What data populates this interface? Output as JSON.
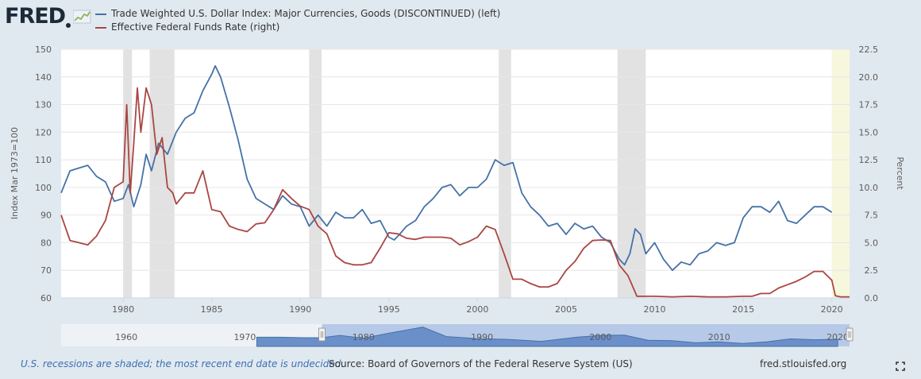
{
  "brand": {
    "logo_text": "FRED"
  },
  "icons": {
    "logo_graph": "line-graph-icon",
    "fullscreen": "expand-icon"
  },
  "colors": {
    "series1": "#4572a7",
    "series2": "#aa4643",
    "recession": "#e2e2e2",
    "undecided": "#f7f7dd",
    "navigator_fill": "#6b8fc9",
    "navigator_window": "#b7c9e8"
  },
  "footer": {
    "note": "U.S. recessions are shaded; the most recent end date is undecided.",
    "source": "Source: Board of Governors of the Federal Reserve System (US)",
    "site": "fred.stlouisfed.org"
  },
  "chart_data": {
    "type": "line",
    "title": "",
    "xlabel": "",
    "x_ticks": [
      1980,
      1985,
      1990,
      1995,
      2000,
      2005,
      2010,
      2015,
      2020
    ],
    "xlim": [
      1976.5,
      2021.0
    ],
    "y_left": {
      "label": "Index Mar 1973=100",
      "lim": [
        60,
        150
      ],
      "ticks": [
        60,
        70,
        80,
        90,
        100,
        110,
        120,
        130,
        140,
        150
      ]
    },
    "y_right": {
      "label": "Percent",
      "lim": [
        0,
        22.5
      ],
      "ticks": [
        "0.0",
        "2.5",
        "5.0",
        "7.5",
        "10.0",
        "12.5",
        "15.0",
        "17.5",
        "20.0",
        "22.5"
      ]
    },
    "grid": "horizontal",
    "legend_position": "top-left",
    "recessions": [
      [
        1980.0,
        1980.5
      ],
      [
        1981.5,
        1982.9
      ],
      [
        1990.5,
        1991.2
      ],
      [
        2001.2,
        2001.9
      ],
      [
        2007.9,
        2009.5
      ]
    ],
    "undecided_region": [
      2020.0,
      2021.0
    ],
    "series": [
      {
        "name": "Trade Weighted U.S. Dollar Index: Major Currencies, Goods (DISCONTINUED) (left)",
        "axis": "left",
        "x": [
          1976.5,
          1977.0,
          1977.5,
          1978.0,
          1978.5,
          1979.0,
          1979.5,
          1980.0,
          1980.3,
          1980.6,
          1981.0,
          1981.3,
          1981.6,
          1982.0,
          1982.5,
          1983.0,
          1983.5,
          1984.0,
          1984.5,
          1985.0,
          1985.2,
          1985.5,
          1986.0,
          1986.5,
          1987.0,
          1987.5,
          1988.0,
          1988.5,
          1989.0,
          1989.5,
          1990.0,
          1990.5,
          1991.0,
          1991.5,
          1992.0,
          1992.5,
          1993.0,
          1993.5,
          1994.0,
          1994.5,
          1995.0,
          1995.3,
          1995.6,
          1996.0,
          1996.5,
          1997.0,
          1997.5,
          1998.0,
          1998.5,
          1999.0,
          1999.5,
          2000.0,
          2000.5,
          2001.0,
          2001.5,
          2002.0,
          2002.5,
          2003.0,
          2003.5,
          2004.0,
          2004.5,
          2005.0,
          2005.5,
          2006.0,
          2006.5,
          2007.0,
          2007.5,
          2008.0,
          2008.3,
          2008.6,
          2008.9,
          2009.2,
          2009.5,
          2010.0,
          2010.5,
          2011.0,
          2011.5,
          2012.0,
          2012.5,
          2013.0,
          2013.5,
          2014.0,
          2014.5,
          2015.0,
          2015.5,
          2016.0,
          2016.5,
          2017.0,
          2017.5,
          2018.0,
          2018.5,
          2019.0,
          2019.5,
          2020.0
        ],
        "y": [
          98,
          106,
          107,
          108,
          104,
          102,
          95,
          96,
          101,
          93,
          101,
          112,
          106,
          116,
          112,
          120,
          125,
          127,
          135,
          141,
          144,
          140,
          129,
          117,
          103,
          96,
          94,
          92,
          97,
          94,
          93,
          86,
          90,
          86,
          91,
          89,
          89,
          92,
          87,
          88,
          82,
          81,
          83,
          86,
          88,
          93,
          96,
          100,
          101,
          97,
          100,
          100,
          103,
          110,
          108,
          109,
          98,
          93,
          90,
          86,
          87,
          83,
          87,
          85,
          86,
          82,
          80,
          74,
          72,
          76,
          85,
          83,
          76,
          80,
          74,
          70,
          73,
          72,
          76,
          77,
          80,
          79,
          80,
          89,
          93,
          93,
          91,
          95,
          88,
          87,
          90,
          93,
          93,
          91
        ]
      },
      {
        "name": "Effective Federal Funds Rate (right)",
        "axis": "right",
        "x": [
          1976.5,
          1977.0,
          1977.5,
          1978.0,
          1978.5,
          1979.0,
          1979.5,
          1980.0,
          1980.2,
          1980.4,
          1980.6,
          1980.8,
          1981.0,
          1981.3,
          1981.6,
          1981.9,
          1982.2,
          1982.5,
          1982.8,
          1983.0,
          1983.5,
          1984.0,
          1984.5,
          1985.0,
          1985.5,
          1986.0,
          1986.5,
          1987.0,
          1987.5,
          1988.0,
          1988.5,
          1989.0,
          1989.5,
          1990.0,
          1990.5,
          1991.0,
          1991.5,
          1992.0,
          1992.5,
          1993.0,
          1993.5,
          1994.0,
          1994.5,
          1995.0,
          1995.5,
          1996.0,
          1996.5,
          1997.0,
          1997.5,
          1998.0,
          1998.5,
          1999.0,
          1999.5,
          2000.0,
          2000.5,
          2001.0,
          2001.5,
          2002.0,
          2002.5,
          2003.0,
          2003.5,
          2004.0,
          2004.5,
          2005.0,
          2005.5,
          2006.0,
          2006.5,
          2007.0,
          2007.5,
          2008.0,
          2008.5,
          2009.0,
          2010.0,
          2011.0,
          2012.0,
          2013.0,
          2014.0,
          2015.0,
          2015.5,
          2016.0,
          2016.5,
          2017.0,
          2017.5,
          2018.0,
          2018.5,
          2019.0,
          2019.5,
          2020.0,
          2020.2,
          2020.5,
          2021.0
        ],
        "y": [
          7.5,
          5.2,
          5.0,
          4.8,
          5.6,
          7.0,
          10.0,
          10.5,
          17.5,
          9.5,
          14.0,
          19.0,
          15.0,
          19.0,
          17.5,
          13.0,
          14.5,
          10.0,
          9.5,
          8.5,
          9.5,
          9.5,
          11.5,
          8.0,
          7.8,
          6.5,
          6.2,
          6.0,
          6.7,
          6.8,
          8.0,
          9.8,
          9.0,
          8.3,
          8.0,
          6.5,
          5.8,
          3.8,
          3.2,
          3.0,
          3.0,
          3.2,
          4.5,
          5.9,
          5.8,
          5.4,
          5.3,
          5.5,
          5.5,
          5.5,
          5.4,
          4.8,
          5.1,
          5.5,
          6.5,
          6.2,
          4.0,
          1.7,
          1.7,
          1.3,
          1.0,
          1.0,
          1.3,
          2.5,
          3.3,
          4.5,
          5.2,
          5.25,
          5.2,
          3.0,
          2.0,
          0.15,
          0.15,
          0.1,
          0.15,
          0.1,
          0.1,
          0.15,
          0.15,
          0.4,
          0.4,
          0.9,
          1.2,
          1.5,
          1.9,
          2.4,
          2.4,
          1.6,
          0.2,
          0.1,
          0.1
        ]
      }
    ],
    "navigator": {
      "x_ticks": [
        1960,
        1970,
        1980,
        1990,
        2000,
        2010,
        2020
      ],
      "xlim": [
        1954.5,
        2021.0
      ],
      "window": [
        1976.5,
        2021.0
      ],
      "x": [
        1971,
        1973,
        1975,
        1976.5,
        1978,
        1980,
        1982,
        1985,
        1987,
        1990,
        1992,
        1995,
        1998,
        2000,
        2002,
        2004,
        2006,
        2008,
        2010,
        2012,
        2014,
        2016,
        2018,
        2020
      ],
      "y": [
        100,
        100,
        98,
        98,
        108,
        96,
        116,
        144,
        103,
        93,
        91,
        82,
        100,
        108,
        109,
        87,
        85,
        76,
        80,
        73,
        80,
        93,
        89,
        91
      ]
    }
  }
}
